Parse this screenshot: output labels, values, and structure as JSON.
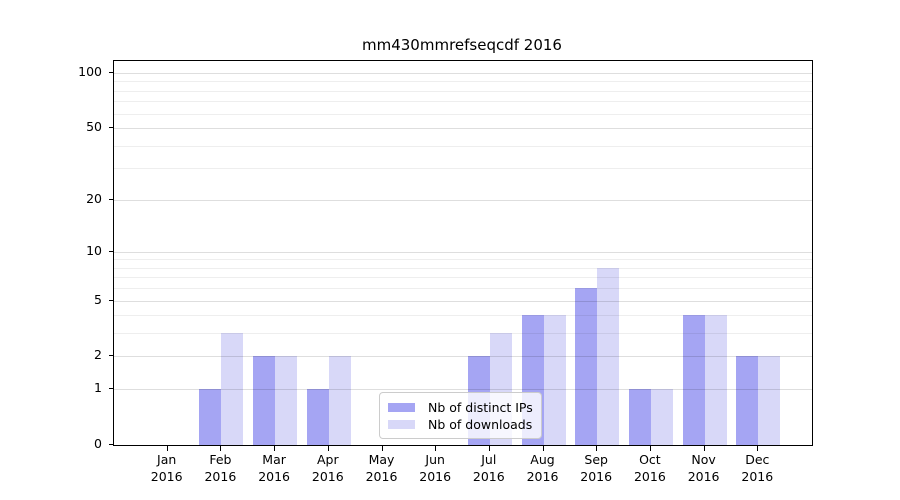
{
  "title": "mm430mmrefseqcdf 2016",
  "legend": {
    "items": [
      {
        "label": "Nb of distinct IPs",
        "color": "#a5a5f3"
      },
      {
        "label": "Nb of downloads",
        "color": "#d8d8f8"
      }
    ]
  },
  "chart_data": {
    "type": "bar",
    "title": "mm430mmrefseqcdf 2016",
    "categories": [
      "Jan 2016",
      "Feb 2016",
      "Mar 2016",
      "Apr 2016",
      "May 2016",
      "Jun 2016",
      "Jul 2016",
      "Aug 2016",
      "Sep 2016",
      "Oct 2016",
      "Nov 2016",
      "Dec 2016"
    ],
    "series": [
      {
        "name": "Nb of distinct IPs",
        "color": "#a5a5f3",
        "values": [
          0,
          1,
          2,
          1,
          0,
          0,
          2,
          4,
          6,
          1,
          4,
          2
        ]
      },
      {
        "name": "Nb of downloads",
        "color": "#d8d8f8",
        "values": [
          0,
          3,
          2,
          2,
          0,
          0,
          3,
          4,
          8,
          1,
          4,
          2
        ]
      }
    ],
    "yscale": "log1p",
    "ylim": [
      0,
      116
    ],
    "yticks": [
      0,
      1,
      2,
      5,
      10,
      20,
      50,
      100
    ],
    "minor_gridlines": [
      3,
      4,
      6,
      7,
      8,
      9,
      30,
      40,
      60,
      70,
      80,
      90
    ],
    "grid": true,
    "legend_position": "lower center",
    "xlabel": "",
    "ylabel": ""
  },
  "colors": {
    "bar_distinct_ips": "#a5a5f3",
    "bar_downloads": "#d8d8f8",
    "grid_major": "#dddddd",
    "grid_minor": "#ededed",
    "axis": "#000000",
    "text": "#000000",
    "legend_border": "#cccccc"
  }
}
